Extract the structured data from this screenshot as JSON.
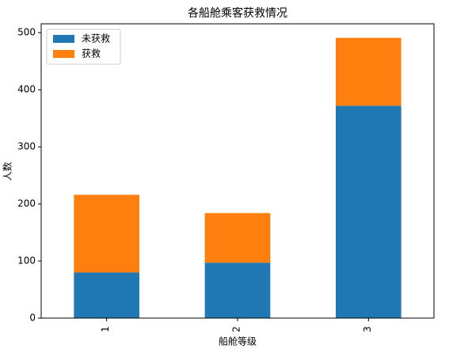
{
  "chart_data": {
    "type": "stacked_bar",
    "title": "各船舱乘客获救情况",
    "x_label": "船舱等级",
    "y_label": "人数",
    "categories": [
      "1",
      "2",
      "3"
    ],
    "series": [
      {
        "name": "未获救",
        "color": "#1f77b4",
        "values": [
          80,
          97,
          372
        ]
      },
      {
        "name": "获救",
        "color": "#ff7f0e",
        "values": [
          136,
          87,
          119
        ]
      }
    ],
    "ylim": [
      0,
      515.55
    ],
    "yticks": [
      0,
      100,
      200,
      300,
      400,
      500
    ],
    "legend": "upper left",
    "grid": false
  }
}
